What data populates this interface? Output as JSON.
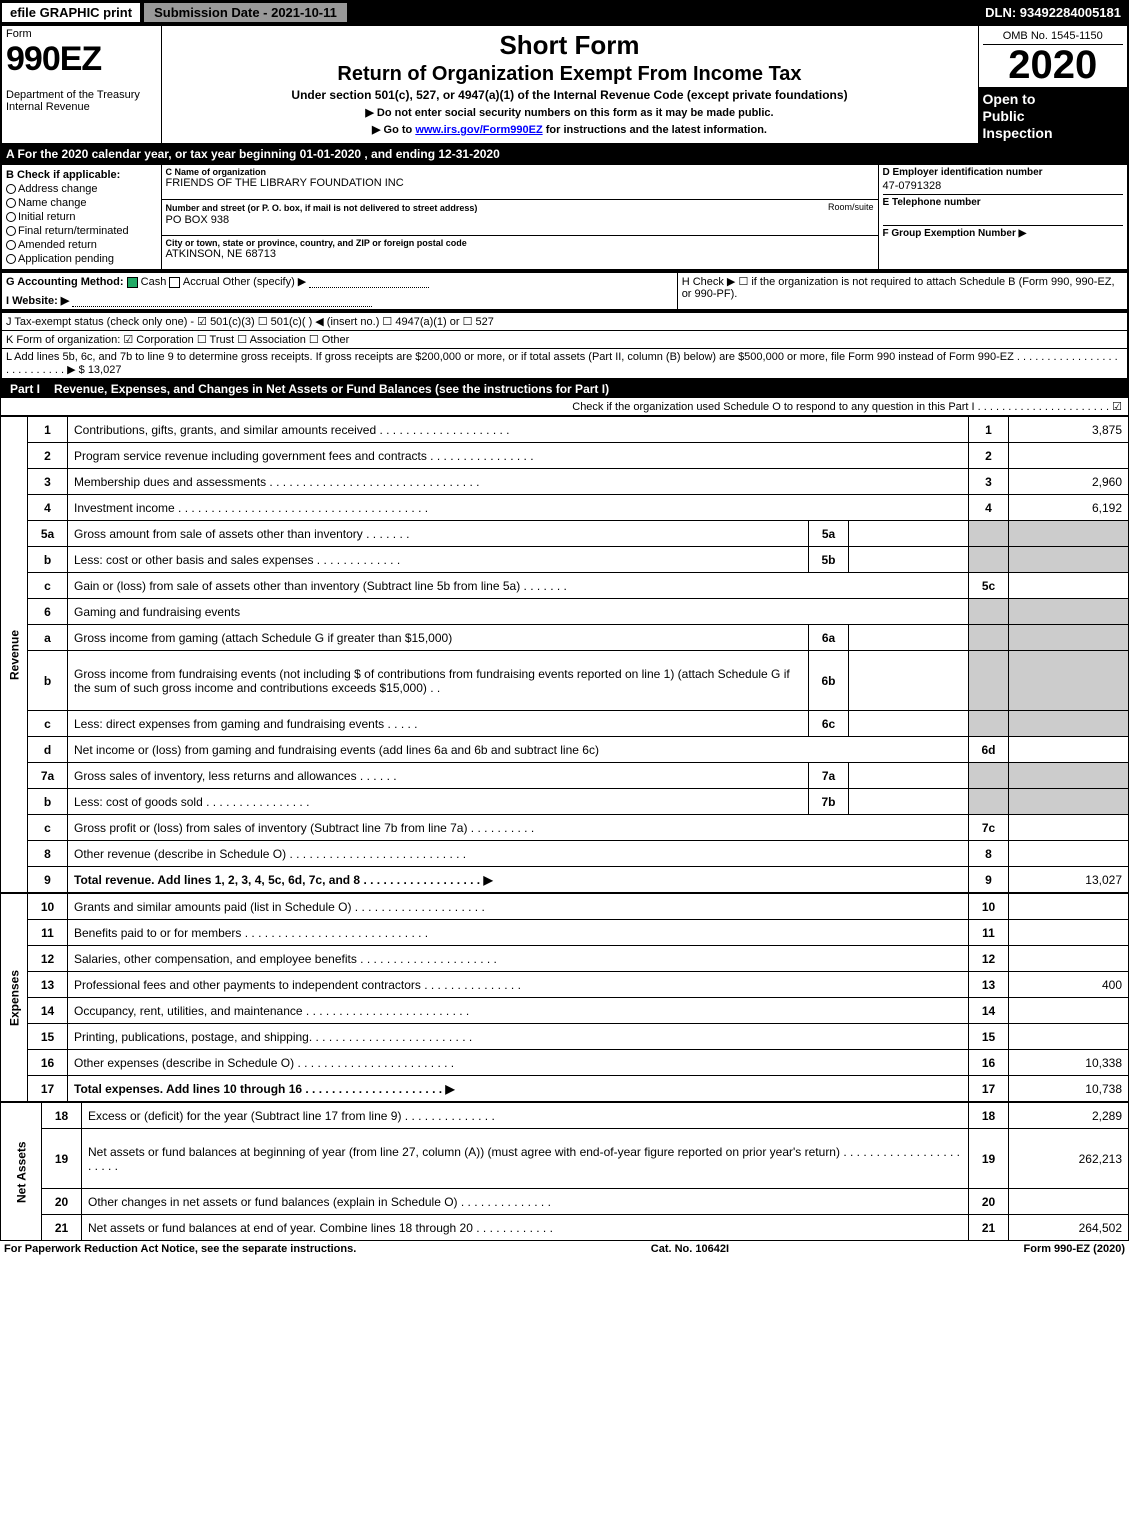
{
  "topbar": {
    "efile": "efile GRAPHIC print",
    "submission": "Submission Date - 2021-10-11",
    "dln": "DLN: 93492284005181"
  },
  "header": {
    "form_word": "Form",
    "form_number": "990EZ",
    "dept": "Department of the Treasury\nInternal Revenue",
    "title1": "Short Form",
    "title2": "Return of Organization Exempt From Income Tax",
    "subtitle": "Under section 501(c), 527, or 4947(a)(1) of the Internal Revenue Code (except private foundations)",
    "warn1": "▶ Do not enter social security numbers on this form as it may be made public.",
    "warn2_pre": "▶ Go to ",
    "warn2_link": "www.irs.gov/Form990EZ",
    "warn2_post": " for instructions and the latest information.",
    "omb": "OMB No. 1545-1150",
    "year": "2020",
    "public1": "Open to",
    "public2": "Public",
    "public3": "Inspection"
  },
  "sectionA": "A For the 2020 calendar year, or tax year beginning 01-01-2020 , and ending 12-31-2020",
  "checkB": {
    "title": "B  Check if applicable:",
    "opts": [
      "Address change",
      "Name change",
      "Initial return",
      "Final return/terminated",
      "Amended return",
      "Application pending"
    ]
  },
  "orgC": {
    "label_name": "C Name of organization",
    "name": "FRIENDS OF THE LIBRARY FOUNDATION INC",
    "label_addr": "Number and street (or P. O. box, if mail is not delivered to street address)",
    "room_label": "Room/suite",
    "addr": "PO BOX 938",
    "label_city": "City or town, state or province, country, and ZIP or foreign postal code",
    "city": "ATKINSON, NE  68713"
  },
  "rightCol": {
    "d_label": "D Employer identification number",
    "d_val": "47-0791328",
    "e_label": "E Telephone number",
    "f_label": "F Group Exemption Number  ▶"
  },
  "lineG": {
    "label": "G Accounting Method:",
    "cash": "Cash",
    "accrual": "Accrual",
    "other": "Other (specify) ▶"
  },
  "lineH": "H  Check ▶  ☐  if the organization is not required to attach Schedule B (Form 990, 990-EZ, or 990-PF).",
  "lineI": "I Website: ▶",
  "lineJ": "J Tax-exempt status (check only one) - ☑ 501(c)(3)  ☐ 501(c)(  ) ◀ (insert no.)  ☐ 4947(a)(1) or  ☐ 527",
  "lineK": "K Form of organization:  ☑ Corporation  ☐ Trust  ☐ Association  ☐ Other",
  "lineL": "L Add lines 5b, 6c, and 7b to line 9 to determine gross receipts. If gross receipts are $200,000 or more, or if total assets (Part II, column (B) below) are $500,000 or more, file Form 990 instead of Form 990-EZ . . . . . . . . . . . . . . . . . . . . . . . . . . . ▶ $ 13,027",
  "partI": {
    "num": "Part I",
    "title": "Revenue, Expenses, and Changes in Net Assets or Fund Balances (see the instructions for Part I)",
    "sub": "Check if the organization used Schedule O to respond to any question in this Part I . . . . . . . . . . . . . . . . . . . . . . ☑"
  },
  "vlabels": {
    "revenue": "Revenue",
    "expenses": "Expenses",
    "netassets": "Net Assets"
  },
  "rows": [
    {
      "n": "1",
      "d": "Contributions, gifts, grants, and similar amounts received . . . . . . . . . . . . . . . . . . . .",
      "ref": "1",
      "v": "3,875"
    },
    {
      "n": "2",
      "d": "Program service revenue including government fees and contracts . . . . . . . . . . . . . . . .",
      "ref": "2",
      "v": ""
    },
    {
      "n": "3",
      "d": "Membership dues and assessments . . . . . . . . . . . . . . . . . . . . . . . . . . . . . . . .",
      "ref": "3",
      "v": "2,960"
    },
    {
      "n": "4",
      "d": "Investment income . . . . . . . . . . . . . . . . . . . . . . . . . . . . . . . . . . . . . .",
      "ref": "4",
      "v": "6,192"
    },
    {
      "n": "5a",
      "d": "Gross amount from sale of assets other than inventory . . . . . . .",
      "sub": "5a",
      "subv": "",
      "grey": true
    },
    {
      "n": "b",
      "d": "Less: cost or other basis and sales expenses . . . . . . . . . . . . .",
      "sub": "5b",
      "subv": "",
      "grey": true
    },
    {
      "n": "c",
      "d": "Gain or (loss) from sale of assets other than inventory (Subtract line 5b from line 5a) . . . . . . .",
      "ref": "5c",
      "v": ""
    },
    {
      "n": "6",
      "d": "Gaming and fundraising events",
      "grey": true,
      "noboxes": true
    },
    {
      "n": "a",
      "d": "Gross income from gaming (attach Schedule G if greater than $15,000)",
      "sub": "6a",
      "subv": "",
      "grey": true
    },
    {
      "n": "b",
      "d": "Gross income from fundraising events (not including $                    of contributions from fundraising events reported on line 1) (attach Schedule G if the sum of such gross income and contributions exceeds $15,000)   . .",
      "sub": "6b",
      "subv": "",
      "grey": true,
      "tall": true
    },
    {
      "n": "c",
      "d": "Less: direct expenses from gaming and fundraising events   . . . . .",
      "sub": "6c",
      "subv": "",
      "grey": true
    },
    {
      "n": "d",
      "d": "Net income or (loss) from gaming and fundraising events (add lines 6a and 6b and subtract line 6c)",
      "ref": "6d",
      "v": ""
    },
    {
      "n": "7a",
      "d": "Gross sales of inventory, less returns and allowances . . . . . .",
      "sub": "7a",
      "subv": "",
      "grey": true
    },
    {
      "n": "b",
      "d": "Less: cost of goods sold         . . . . . . . . . . . . . . . .",
      "sub": "7b",
      "subv": "",
      "grey": true
    },
    {
      "n": "c",
      "d": "Gross profit or (loss) from sales of inventory (Subtract line 7b from line 7a) . . . . . . . . . .",
      "ref": "7c",
      "v": ""
    },
    {
      "n": "8",
      "d": "Other revenue (describe in Schedule O) . . . . . . . . . . . . . . . . . . . . . . . . . . .",
      "ref": "8",
      "v": ""
    },
    {
      "n": "9",
      "d": "Total revenue. Add lines 1, 2, 3, 4, 5c, 6d, 7c, and 8  . . . . . . . . . . . . . . . . . .  ▶",
      "ref": "9",
      "v": "13,027",
      "bold": true
    }
  ],
  "exp_rows": [
    {
      "n": "10",
      "d": "Grants and similar amounts paid (list in Schedule O) . . . . . . . . . . . . . . . . . . . .",
      "ref": "10",
      "v": ""
    },
    {
      "n": "11",
      "d": "Benefits paid to or for members     . . . . . . . . . . . . . . . . . . . . . . . . . . . .",
      "ref": "11",
      "v": ""
    },
    {
      "n": "12",
      "d": "Salaries, other compensation, and employee benefits . . . . . . . . . . . . . . . . . . . . .",
      "ref": "12",
      "v": ""
    },
    {
      "n": "13",
      "d": "Professional fees and other payments to independent contractors . . . . . . . . . . . . . . .",
      "ref": "13",
      "v": "400"
    },
    {
      "n": "14",
      "d": "Occupancy, rent, utilities, and maintenance . . . . . . . . . . . . . . . . . . . . . . . . .",
      "ref": "14",
      "v": ""
    },
    {
      "n": "15",
      "d": "Printing, publications, postage, and shipping. . . . . . . . . . . . . . . . . . . . . . . . .",
      "ref": "15",
      "v": ""
    },
    {
      "n": "16",
      "d": "Other expenses (describe in Schedule O)     . . . . . . . . . . . . . . . . . . . . . . . .",
      "ref": "16",
      "v": "10,338"
    },
    {
      "n": "17",
      "d": "Total expenses. Add lines 10 through 16     . . . . . . . . . . . . . . . . . . . . .  ▶",
      "ref": "17",
      "v": "10,738",
      "bold": true
    }
  ],
  "na_rows": [
    {
      "n": "18",
      "d": "Excess or (deficit) for the year (Subtract line 17 from line 9)        . . . . . . . . . . . . . .",
      "ref": "18",
      "v": "2,289"
    },
    {
      "n": "19",
      "d": "Net assets or fund balances at beginning of year (from line 27, column (A)) (must agree with end-of-year figure reported on prior year's return) . . . . . . . . . . . . . . . . . . . . . . .",
      "ref": "19",
      "v": "262,213",
      "tall": true
    },
    {
      "n": "20",
      "d": "Other changes in net assets or fund balances (explain in Schedule O) . . . . . . . . . . . . . .",
      "ref": "20",
      "v": ""
    },
    {
      "n": "21",
      "d": "Net assets or fund balances at end of year. Combine lines 18 through 20 . . . . . . . . . . . .",
      "ref": "21",
      "v": "264,502"
    }
  ],
  "footer": {
    "left": "For Paperwork Reduction Act Notice, see the separate instructions.",
    "mid": "Cat. No. 10642I",
    "right": "Form 990-EZ (2020)"
  }
}
